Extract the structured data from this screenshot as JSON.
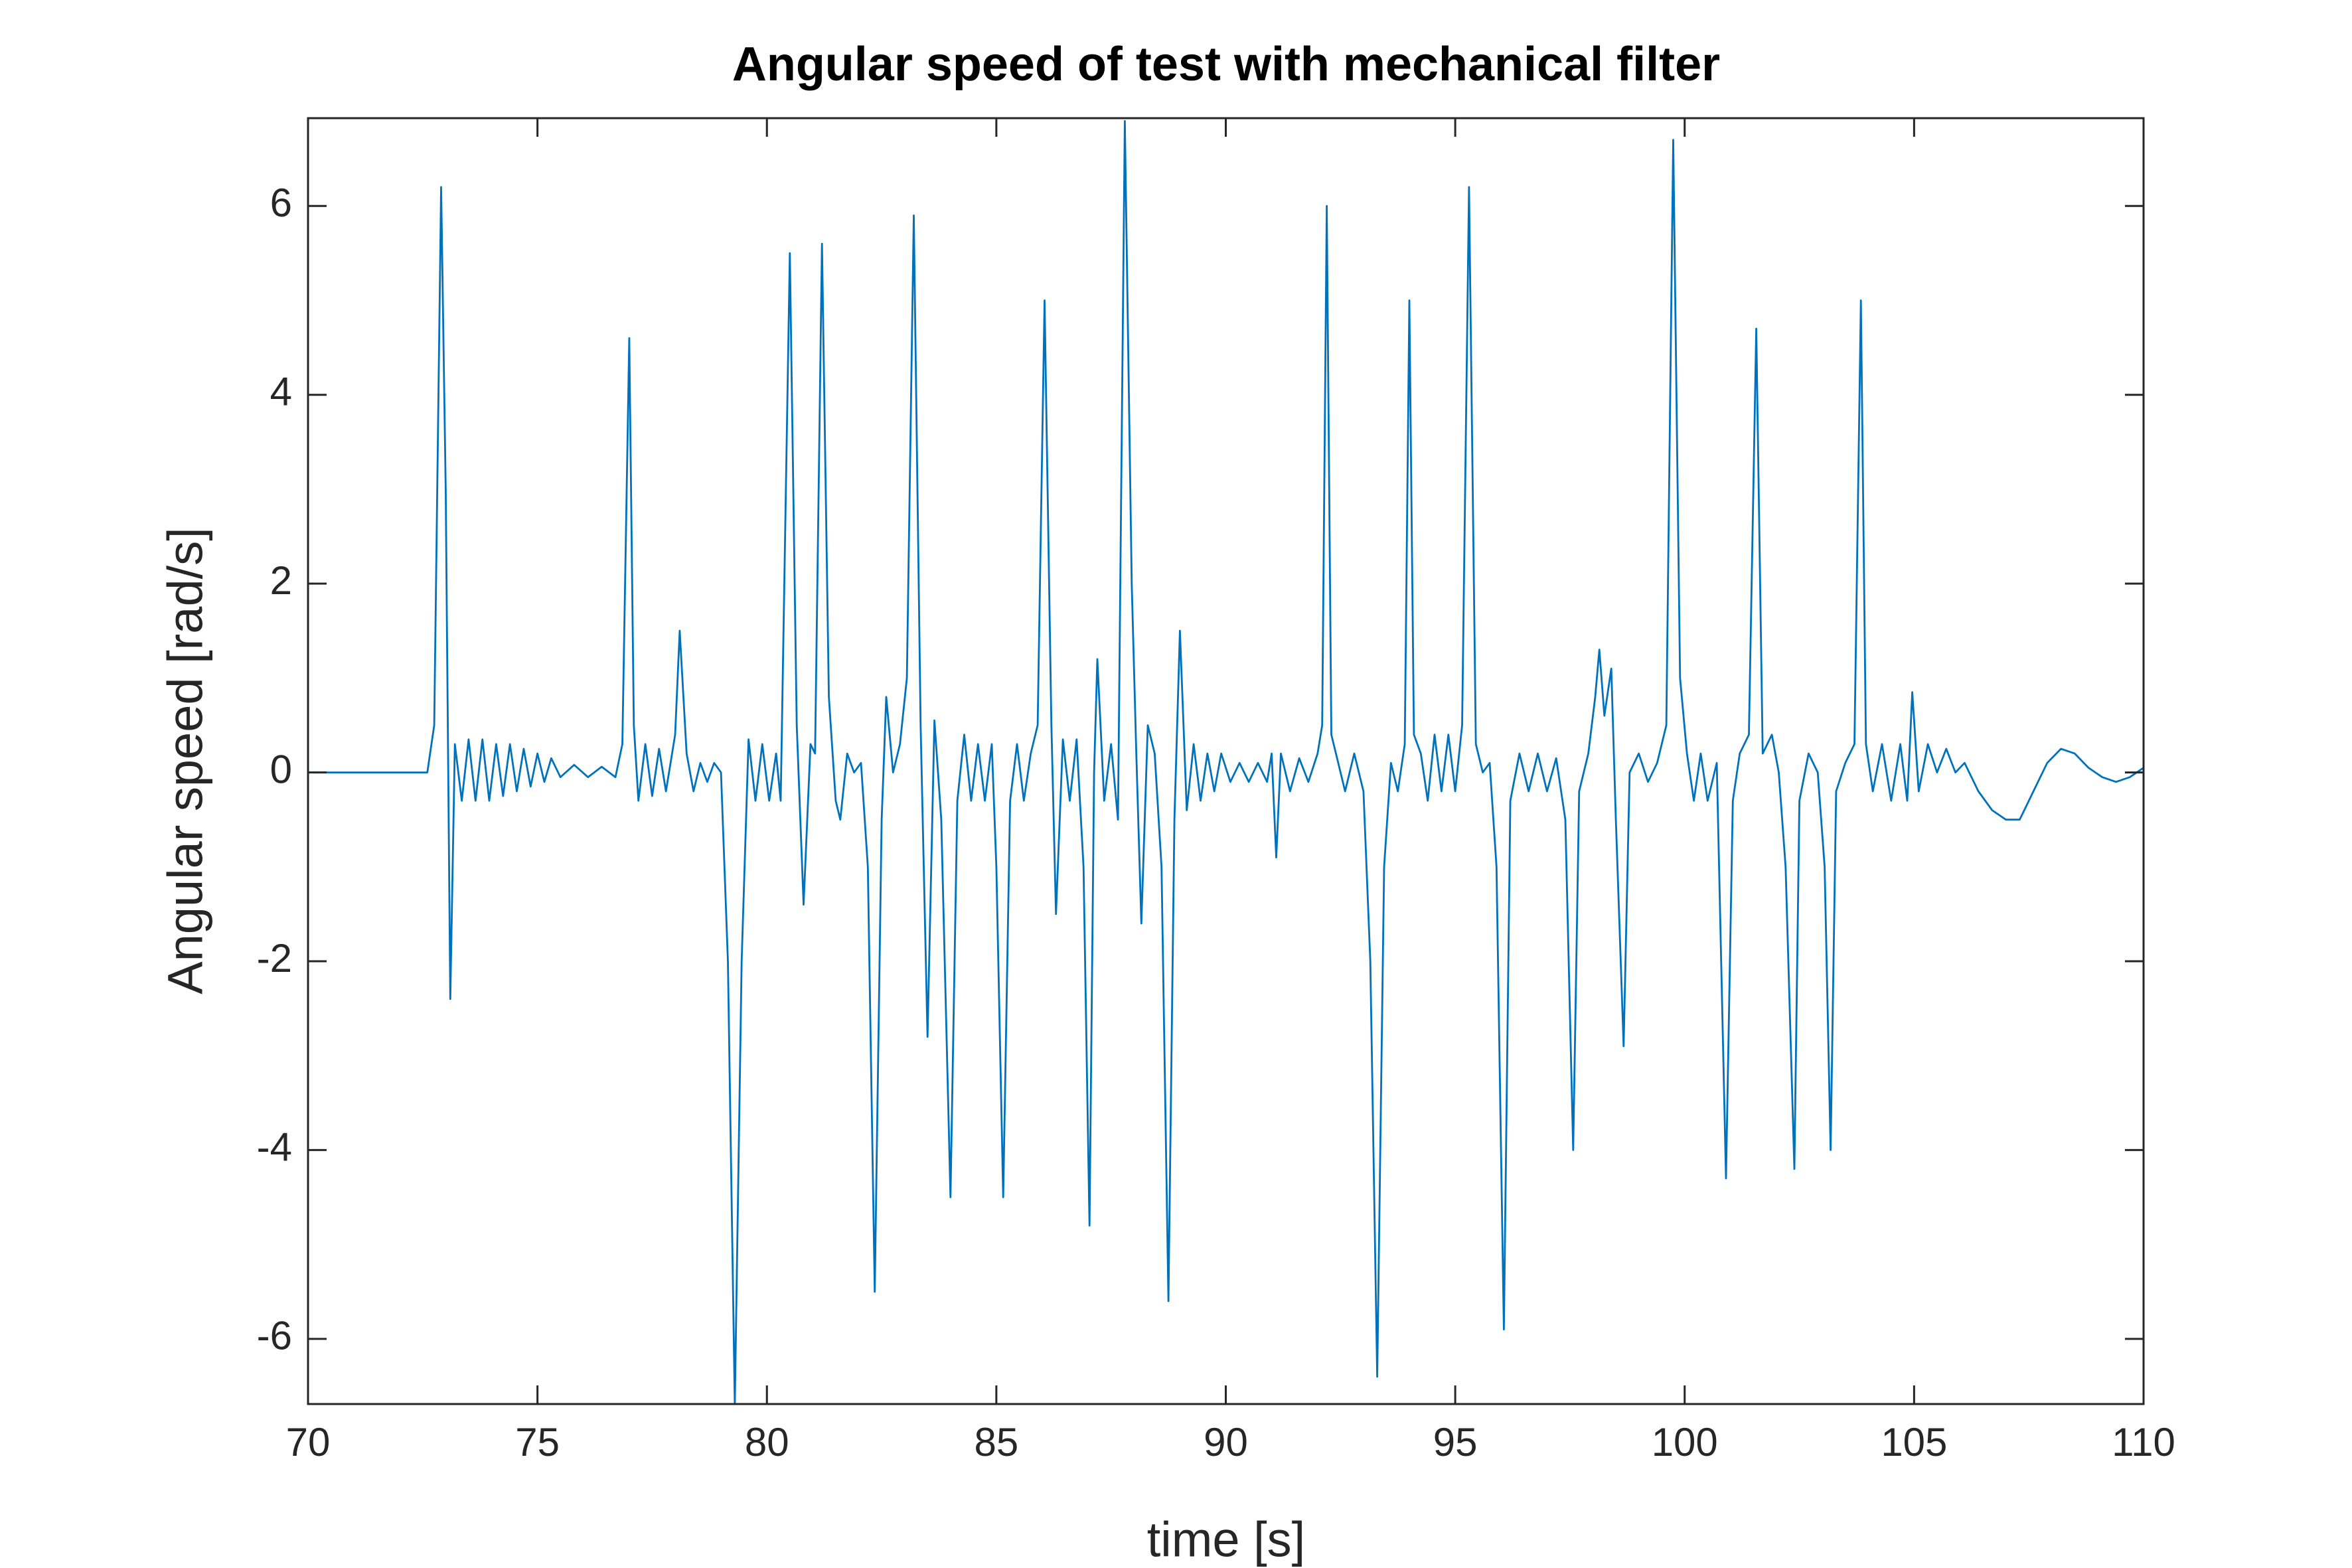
{
  "chart_data": {
    "type": "line",
    "title": "Angular speed of test with mechanical filter",
    "xlabel": "time [s]",
    "ylabel": "Angular speed [rad/s]",
    "xlim": [
      70,
      110
    ],
    "ylim": [
      -6.69,
      6.93
    ],
    "xticks": [
      70,
      75,
      80,
      85,
      90,
      95,
      100,
      105,
      110
    ],
    "yticks": [
      -6,
      -4,
      -2,
      0,
      2,
      4,
      6
    ],
    "grid": false,
    "x": [
      70,
      72.6,
      72.75,
      72.9,
      73.0,
      73.1,
      73.2,
      73.35,
      73.5,
      73.65,
      73.8,
      73.95,
      74.1,
      74.25,
      74.4,
      74.55,
      74.7,
      74.85,
      75.0,
      75.15,
      75.3,
      75.5,
      75.8,
      76.1,
      76.4,
      76.7,
      76.85,
      77.0,
      77.1,
      77.2,
      77.35,
      77.5,
      77.65,
      77.8,
      78.0,
      78.1,
      78.25,
      78.4,
      78.55,
      78.7,
      78.85,
      79.0,
      79.15,
      79.3,
      79.45,
      79.6,
      79.75,
      79.9,
      80.05,
      80.2,
      80.3,
      80.5,
      80.65,
      80.8,
      80.95,
      81.05,
      81.2,
      81.35,
      81.5,
      81.6,
      81.75,
      81.9,
      82.05,
      82.2,
      82.35,
      82.5,
      82.6,
      82.75,
      82.9,
      83.05,
      83.2,
      83.35,
      83.5,
      83.65,
      83.8,
      84.0,
      84.15,
      84.3,
      84.45,
      84.6,
      84.75,
      84.9,
      85.0,
      85.15,
      85.3,
      85.45,
      85.6,
      85.75,
      85.9,
      86.05,
      86.2,
      86.3,
      86.45,
      86.6,
      86.75,
      86.9,
      87.03,
      87.13,
      87.2,
      87.35,
      87.5,
      87.65,
      87.8,
      87.95,
      88.05,
      88.16,
      88.3,
      88.45,
      88.6,
      88.75,
      88.88,
      89.0,
      89.15,
      89.3,
      89.45,
      89.6,
      89.75,
      89.9,
      90.1,
      90.3,
      90.5,
      90.7,
      90.9,
      91.0,
      91.1,
      91.2,
      91.4,
      91.6,
      91.8,
      92.0,
      92.1,
      92.2,
      92.3,
      92.45,
      92.6,
      92.8,
      93.0,
      93.15,
      93.3,
      93.45,
      93.6,
      93.75,
      93.9,
      94.0,
      94.1,
      94.25,
      94.4,
      94.55,
      94.7,
      94.85,
      95.0,
      95.15,
      95.3,
      95.45,
      95.6,
      95.75,
      95.9,
      96.06,
      96.2,
      96.4,
      96.6,
      96.8,
      97.0,
      97.2,
      97.4,
      97.57,
      97.7,
      97.9,
      98.05,
      98.14,
      98.25,
      98.4,
      98.5,
      98.67,
      98.8,
      99.0,
      99.2,
      99.4,
      99.6,
      99.75,
      99.9,
      100.05,
      100.2,
      100.35,
      100.5,
      100.7,
      100.9,
      101.05,
      101.2,
      101.4,
      101.56,
      101.7,
      101.9,
      102.05,
      102.2,
      102.39,
      102.5,
      102.7,
      102.9,
      103.05,
      103.18,
      103.3,
      103.5,
      103.7,
      103.84,
      103.95,
      104.1,
      104.3,
      104.5,
      104.7,
      104.85,
      104.96,
      105.1,
      105.3,
      105.5,
      105.7,
      105.9,
      106.1,
      106.4,
      106.7,
      107.0,
      107.3,
      107.6,
      107.9,
      108.2,
      108.5,
      108.8,
      109.1,
      109.4,
      109.7,
      110
    ],
    "series": [
      {
        "color": "#0072bd",
        "values": [
          0,
          0,
          0.5,
          6.2,
          3,
          -2.4,
          0.3,
          -0.3,
          0.35,
          -0.3,
          0.35,
          -0.3,
          0.3,
          -0.25,
          0.3,
          -0.2,
          0.25,
          -0.15,
          0.2,
          -0.1,
          0.15,
          -0.05,
          0.08,
          -0.05,
          0.06,
          -0.05,
          0.3,
          4.6,
          0.5,
          -0.3,
          0.3,
          -0.25,
          0.25,
          -0.2,
          0.4,
          1.5,
          0.2,
          -0.2,
          0.1,
          -0.1,
          0.1,
          0,
          -2,
          -6.7,
          -2,
          0.35,
          -0.3,
          0.3,
          -0.3,
          0.2,
          -0.3,
          5.5,
          0.5,
          -1.4,
          0.3,
          0.2,
          5.6,
          0.8,
          -0.3,
          -0.5,
          0.2,
          0,
          0.1,
          -1,
          -5.5,
          -0.5,
          0.8,
          0,
          0.3,
          1,
          5.9,
          0.5,
          -2.8,
          0.55,
          -0.5,
          -4.5,
          -0.3,
          0.4,
          -0.3,
          0.3,
          -0.3,
          0.3,
          -1,
          -4.5,
          -0.3,
          0.3,
          -0.3,
          0.2,
          0.5,
          5.0,
          0.5,
          -1.5,
          0.35,
          -0.3,
          0.35,
          -1,
          -4.8,
          0,
          1.2,
          -0.3,
          0.3,
          -0.5,
          6.9,
          2,
          0.2,
          -1.6,
          0.5,
          0.2,
          -1,
          -5.6,
          -0.5,
          1.5,
          -0.4,
          0.3,
          -0.3,
          0.2,
          -0.2,
          0.2,
          -0.1,
          0.1,
          -0.1,
          0.1,
          -0.1,
          0.2,
          -0.9,
          0.2,
          -0.2,
          0.15,
          -0.1,
          0.2,
          0.5,
          6.0,
          0.4,
          0.1,
          -0.2,
          0.2,
          -0.2,
          -2,
          -6.4,
          -1,
          0.1,
          -0.2,
          0.3,
          5.0,
          0.4,
          0.2,
          -0.3,
          0.4,
          -0.2,
          0.4,
          -0.2,
          0.5,
          6.2,
          0.3,
          0,
          0.1,
          -1,
          -5.9,
          -0.3,
          0.2,
          -0.2,
          0.2,
          -0.2,
          0.15,
          -0.5,
          -4.0,
          -0.2,
          0.2,
          0.8,
          1.3,
          0.6,
          1.1,
          -0.5,
          -2.9,
          0,
          0.2,
          -0.1,
          0.1,
          0.5,
          6.7,
          1,
          0.2,
          -0.3,
          0.2,
          -0.3,
          0.1,
          -4.3,
          -0.3,
          0.2,
          0.4,
          4.7,
          0.2,
          0.4,
          0,
          -1,
          -4.2,
          -0.3,
          0.2,
          0,
          -1,
          -4.0,
          -0.2,
          0.1,
          0.3,
          5.0,
          0.3,
          -0.2,
          0.3,
          -0.3,
          0.3,
          -0.3,
          0.85,
          -0.2,
          0.3,
          0,
          0.25,
          0,
          0.1,
          -0.2,
          -0.4,
          -0.5,
          -0.5,
          -0.2,
          0.1,
          0.25,
          0.2,
          0.05,
          -0.05,
          -0.1,
          -0.05,
          0.05
        ]
      }
    ]
  }
}
